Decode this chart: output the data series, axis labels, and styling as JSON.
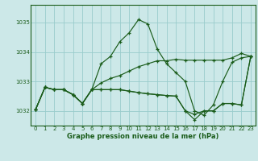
{
  "xlabel": "Graphe pression niveau de la mer (hPa)",
  "bg_color": "#cce8e8",
  "grid_color": "#99cccc",
  "line_color": "#1a5c1a",
  "ylim": [
    1031.5,
    1035.6
  ],
  "xlim": [
    -0.5,
    23.5
  ],
  "xticks": [
    0,
    1,
    2,
    3,
    4,
    5,
    6,
    7,
    8,
    9,
    10,
    11,
    12,
    13,
    14,
    15,
    16,
    17,
    18,
    19,
    20,
    21,
    22,
    23
  ],
  "yticks": [
    1032,
    1033,
    1034,
    1035
  ],
  "series": [
    {
      "x": [
        0,
        1,
        2,
        3,
        4,
        5,
        6,
        7,
        8,
        9,
        10,
        11,
        12,
        13,
        14,
        15,
        16,
        17,
        18,
        19,
        20,
        21,
        22,
        23
      ],
      "y": [
        1032.05,
        1032.8,
        1032.72,
        1032.72,
        1032.55,
        1032.25,
        1032.72,
        1033.6,
        1033.85,
        1034.35,
        1034.65,
        1035.1,
        1034.95,
        1034.1,
        1033.6,
        1033.3,
        1033.0,
        1032.0,
        1031.85,
        1032.2,
        1033.0,
        1033.65,
        1033.8,
        1033.85
      ]
    },
    {
      "x": [
        0,
        1,
        2,
        3,
        4,
        5,
        6,
        7,
        8,
        9,
        10,
        11,
        12,
        13,
        14,
        15,
        16,
        17,
        18,
        19,
        20,
        21,
        22,
        23
      ],
      "y": [
        1032.05,
        1032.8,
        1032.72,
        1032.72,
        1032.55,
        1032.25,
        1032.72,
        1032.95,
        1033.1,
        1033.2,
        1033.35,
        1033.5,
        1033.6,
        1033.7,
        1033.7,
        1033.75,
        1033.72,
        1033.72,
        1033.72,
        1033.72,
        1033.72,
        1033.8,
        1033.95,
        1033.85
      ]
    },
    {
      "x": [
        0,
        1,
        2,
        3,
        4,
        5,
        6,
        7,
        8,
        9,
        10,
        11,
        12,
        13,
        14,
        15,
        16,
        17,
        18,
        19,
        20,
        21,
        22,
        23
      ],
      "y": [
        1032.05,
        1032.8,
        1032.72,
        1032.72,
        1032.55,
        1032.25,
        1032.72,
        1032.72,
        1032.72,
        1032.72,
        1032.67,
        1032.62,
        1032.58,
        1032.55,
        1032.52,
        1032.5,
        1032.0,
        1031.88,
        1032.0,
        1032.0,
        1032.25,
        1032.25,
        1032.2,
        1033.85
      ]
    },
    {
      "x": [
        0,
        1,
        2,
        3,
        4,
        5,
        6,
        7,
        8,
        9,
        10,
        11,
        12,
        13,
        14,
        15,
        16,
        17,
        18,
        19,
        20,
        21,
        22,
        23
      ],
      "y": [
        1032.05,
        1032.8,
        1032.72,
        1032.72,
        1032.55,
        1032.25,
        1032.72,
        1032.72,
        1032.72,
        1032.72,
        1032.67,
        1032.62,
        1032.58,
        1032.55,
        1032.52,
        1032.5,
        1032.0,
        1031.7,
        1032.0,
        1032.0,
        1032.25,
        1032.25,
        1032.2,
        1033.85
      ]
    }
  ]
}
